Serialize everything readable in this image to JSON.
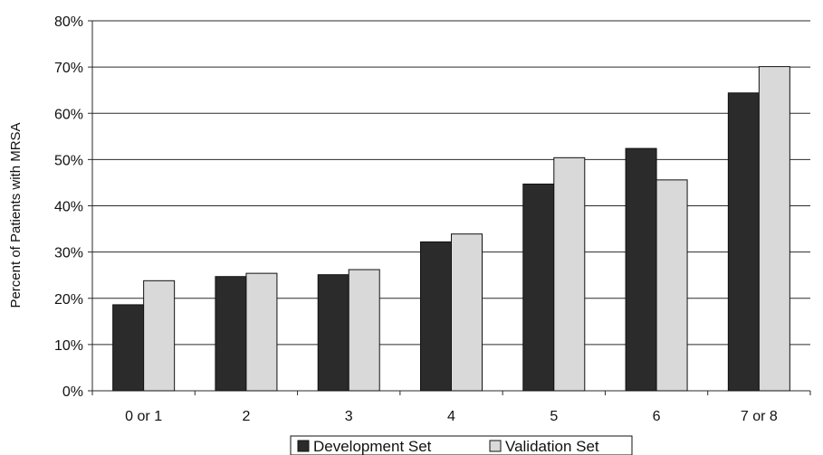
{
  "chart_data": {
    "type": "bar",
    "title": "",
    "xlabel": "",
    "ylabel": "Percent of Patients with MRSA",
    "ylim": [
      0,
      80
    ],
    "yticks": [
      0,
      10,
      20,
      30,
      40,
      50,
      60,
      70,
      80
    ],
    "ytick_labels": [
      "0%",
      "10%",
      "20%",
      "30%",
      "40%",
      "50%",
      "60%",
      "70%",
      "80%"
    ],
    "grid": true,
    "legend_position": "bottom",
    "categories": [
      "0 or 1",
      "2",
      "3",
      "4",
      "5",
      "6",
      "7 or 8"
    ],
    "series": [
      {
        "name": "Development Set",
        "color": "#2b2b2b",
        "values": [
          18.6,
          24.7,
          25.1,
          32.2,
          44.7,
          52.4,
          64.4
        ]
      },
      {
        "name": "Validation Set",
        "color": "#d9d9d9",
        "values": [
          23.8,
          25.4,
          26.2,
          33.9,
          50.4,
          45.6,
          70.1
        ]
      }
    ]
  }
}
